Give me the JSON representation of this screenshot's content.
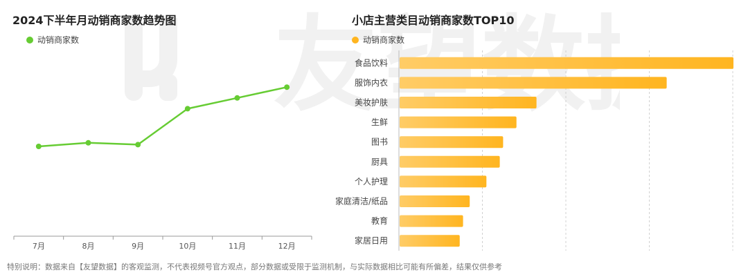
{
  "watermark": {
    "text": "友望数据"
  },
  "left_chart": {
    "title": "2024下半年月动销商家数趋势图",
    "legend_label": "动销商家数",
    "color": "#66cc33"
  },
  "right_chart": {
    "title": "小店主营类目动销商家数TOP10",
    "legend_label": "动销商家数",
    "color": "#ffb520"
  },
  "footnote": "特别说明：数据来自【友望数据】的客观监测，不代表视频号官方观点，部分数据或受限于监测机制，与实际数据相比可能有所偏差，结果仅供参考",
  "chart_data": [
    {
      "type": "line",
      "title": "2024下半年月动销商家数趋势图",
      "categories": [
        "7月",
        "8月",
        "9月",
        "10月",
        "11月",
        "12月"
      ],
      "series": [
        {
          "name": "动销商家数",
          "values": [
            10,
            12,
            11,
            31,
            37,
            43
          ]
        }
      ],
      "ylim": [
        -40,
        80
      ],
      "grid": false,
      "legend": "top-left"
    },
    {
      "type": "bar",
      "orientation": "horizontal",
      "title": "小店主营类目动销商家数TOP10",
      "categories": [
        "食品饮料",
        "服饰内衣",
        "美妆护肤",
        "生鲜",
        "图书",
        "厨具",
        "个人护理",
        "家庭清洁/纸品",
        "教育",
        "家居日用"
      ],
      "series": [
        {
          "name": "动销商家数",
          "values": [
            100,
            80,
            41,
            35,
            31,
            30,
            26,
            21,
            19,
            18
          ]
        }
      ],
      "xlim": [
        0,
        100
      ],
      "grid": true,
      "legend": "top-left"
    }
  ]
}
